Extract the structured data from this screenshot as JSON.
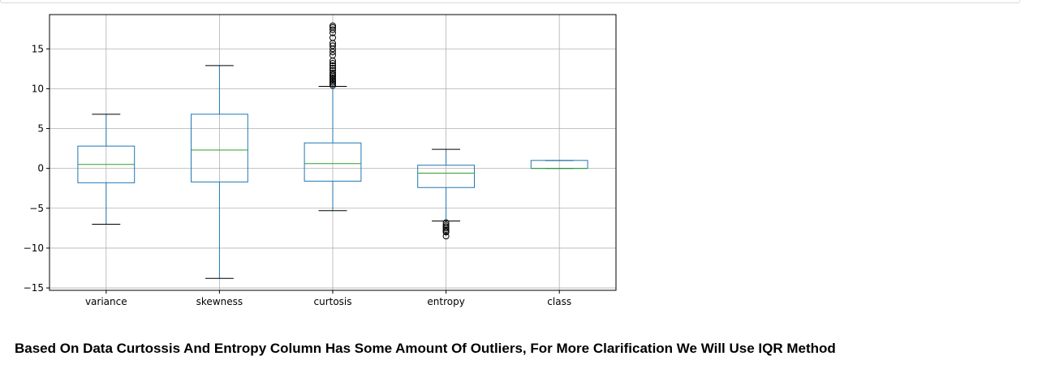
{
  "caption": "Based On Data Curtossis And Entropy Column Has Some Amount Of Outliers, For More Clarification We Will Use IQR Method",
  "colors": {
    "box": "#1f77b4",
    "median": "#2ca02c",
    "whisker_cap": "#000000",
    "grid": "#b0b0b0",
    "flier": "#000000"
  },
  "chart_data": {
    "type": "boxplot",
    "grid": true,
    "ylim": [
      -15.3,
      19.3
    ],
    "yticks": [
      -15,
      -10,
      -5,
      0,
      5,
      10,
      15
    ],
    "ytick_labels": [
      "−15",
      "−10",
      "−5",
      "0",
      "5",
      "10",
      "15"
    ],
    "categories": [
      "variance",
      "skewness",
      "curtosis",
      "entropy",
      "class"
    ],
    "boxes": [
      {
        "name": "variance",
        "whislo": -7.0,
        "q1": -1.8,
        "med": 0.5,
        "q3": 2.8,
        "whishi": 6.8,
        "fliers": []
      },
      {
        "name": "skewness",
        "whislo": -13.8,
        "q1": -1.7,
        "med": 2.3,
        "q3": 6.8,
        "whishi": 12.9,
        "fliers": []
      },
      {
        "name": "curtosis",
        "whislo": -5.3,
        "q1": -1.6,
        "med": 0.6,
        "q3": 3.2,
        "whishi": 10.3,
        "fliers": [
          10.4,
          10.6,
          10.8,
          11.0,
          11.2,
          11.4,
          11.6,
          11.8,
          12.0,
          12.3,
          12.6,
          12.9,
          13.2,
          13.5,
          14.2,
          14.6,
          15.0,
          15.4,
          15.7,
          16.4,
          17.0,
          17.4,
          17.7,
          17.9
        ]
      },
      {
        "name": "entropy",
        "whislo": -6.6,
        "q1": -2.4,
        "med": -0.6,
        "q3": 0.4,
        "whishi": 2.4,
        "fliers": [
          -6.8,
          -7.1,
          -7.3,
          -7.5,
          -7.7,
          -7.9,
          -8.0,
          -8.5
        ]
      },
      {
        "name": "class",
        "whislo": 0.0,
        "q1": 0.0,
        "med": 0.0,
        "q3": 1.0,
        "whishi": 1.0,
        "fliers": []
      }
    ]
  }
}
